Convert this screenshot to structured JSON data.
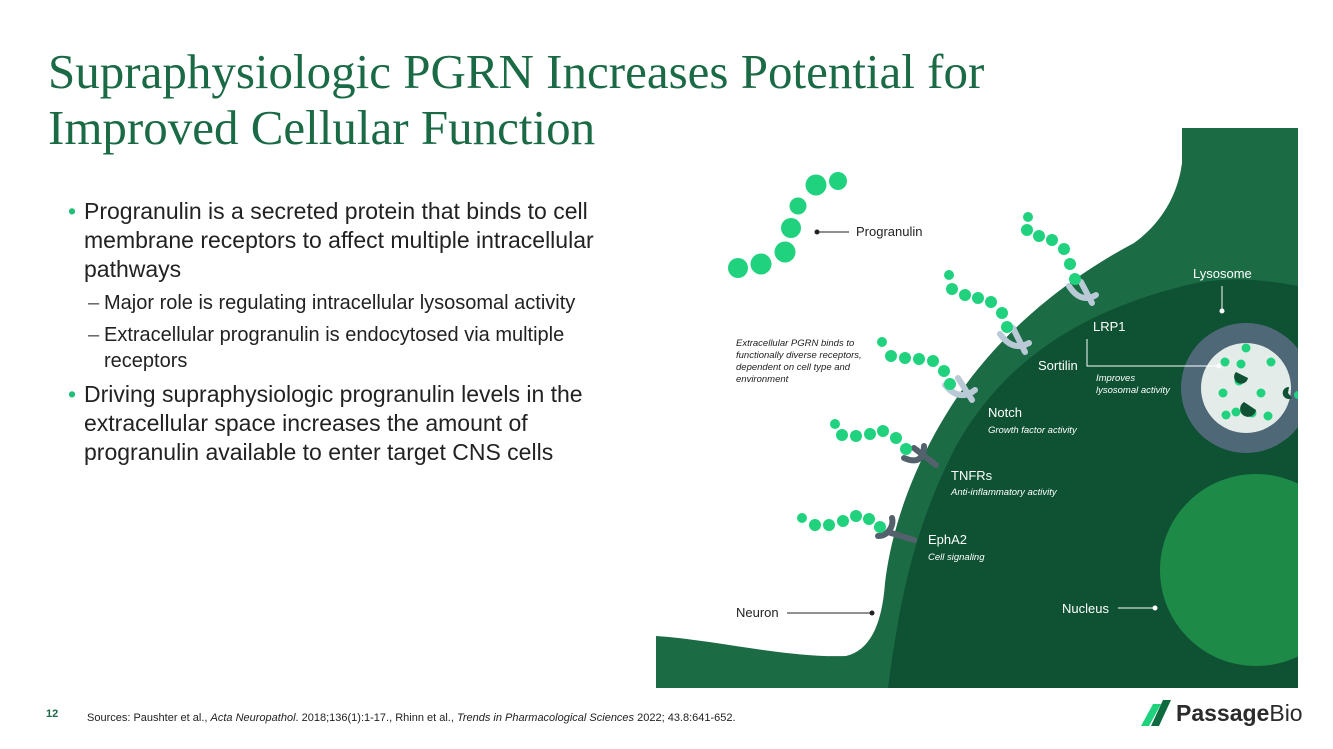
{
  "title": "Supraphysiologic PGRN Increases Potential for Improved Cellular Function",
  "bullets": {
    "b1": "Progranulin is a secreted protein that binds to cell membrane receptors to affect multiple intracellular pathways",
    "b1_sub1": "Major role is regulating intracellular lysosomal activity",
    "b1_sub2": "Extracellular progranulin is endocytosed via multiple receptors",
    "b2": "Driving supraphysiologic progranulin levels in the extracellular space increases the amount of progranulin available to enter target CNS cells",
    "bullet_glyph": "•",
    "dash_glyph": "–"
  },
  "diagram": {
    "progranulin_label": "Progranulin",
    "extracellular_note": [
      "Extracellular PGRN binds to",
      "functionally diverse receptors,",
      "dependent on cell type and",
      "environment"
    ],
    "lysosome_label": "Lysosome",
    "lrp1_label": "LRP1",
    "sortilin_label": "Sortilin",
    "improves_label": [
      "Improves",
      "lysosomal activity"
    ],
    "notch_label": "Notch",
    "notch_activity": "Growth factor activity",
    "tnfrs_label": "TNFRs",
    "tnfrs_activity": "Anti-inflammatory activity",
    "epha2_label": "EphA2",
    "epha2_activity": "Cell signaling",
    "neuron_label": "Neuron",
    "nucleus_label": "Nucleus",
    "colors": {
      "cell_outer": "#1b6b45",
      "cell_inner": "#0e5233",
      "nucleus": "#1e8a48",
      "granulin": "#20d27e",
      "receptor_light": "#b9cad6",
      "receptor_dark": "#53616c",
      "lysosome_ring": "#4f6878",
      "lysosome_core": "#e4ecea"
    }
  },
  "footer": {
    "slide_number": "12",
    "sources_prefix": "Sources: Paushter et al., ",
    "sources_journal1": "Acta Neuropathol",
    "sources_mid": ". 2018;136(1):1-17., Rhinn et al., ",
    "sources_journal2": "Trends in Pharmacological Sciences",
    "sources_suffix": " 2022; 43.8:641-652.",
    "logo_word1": "Passage",
    "logo_word2": "Bio"
  }
}
